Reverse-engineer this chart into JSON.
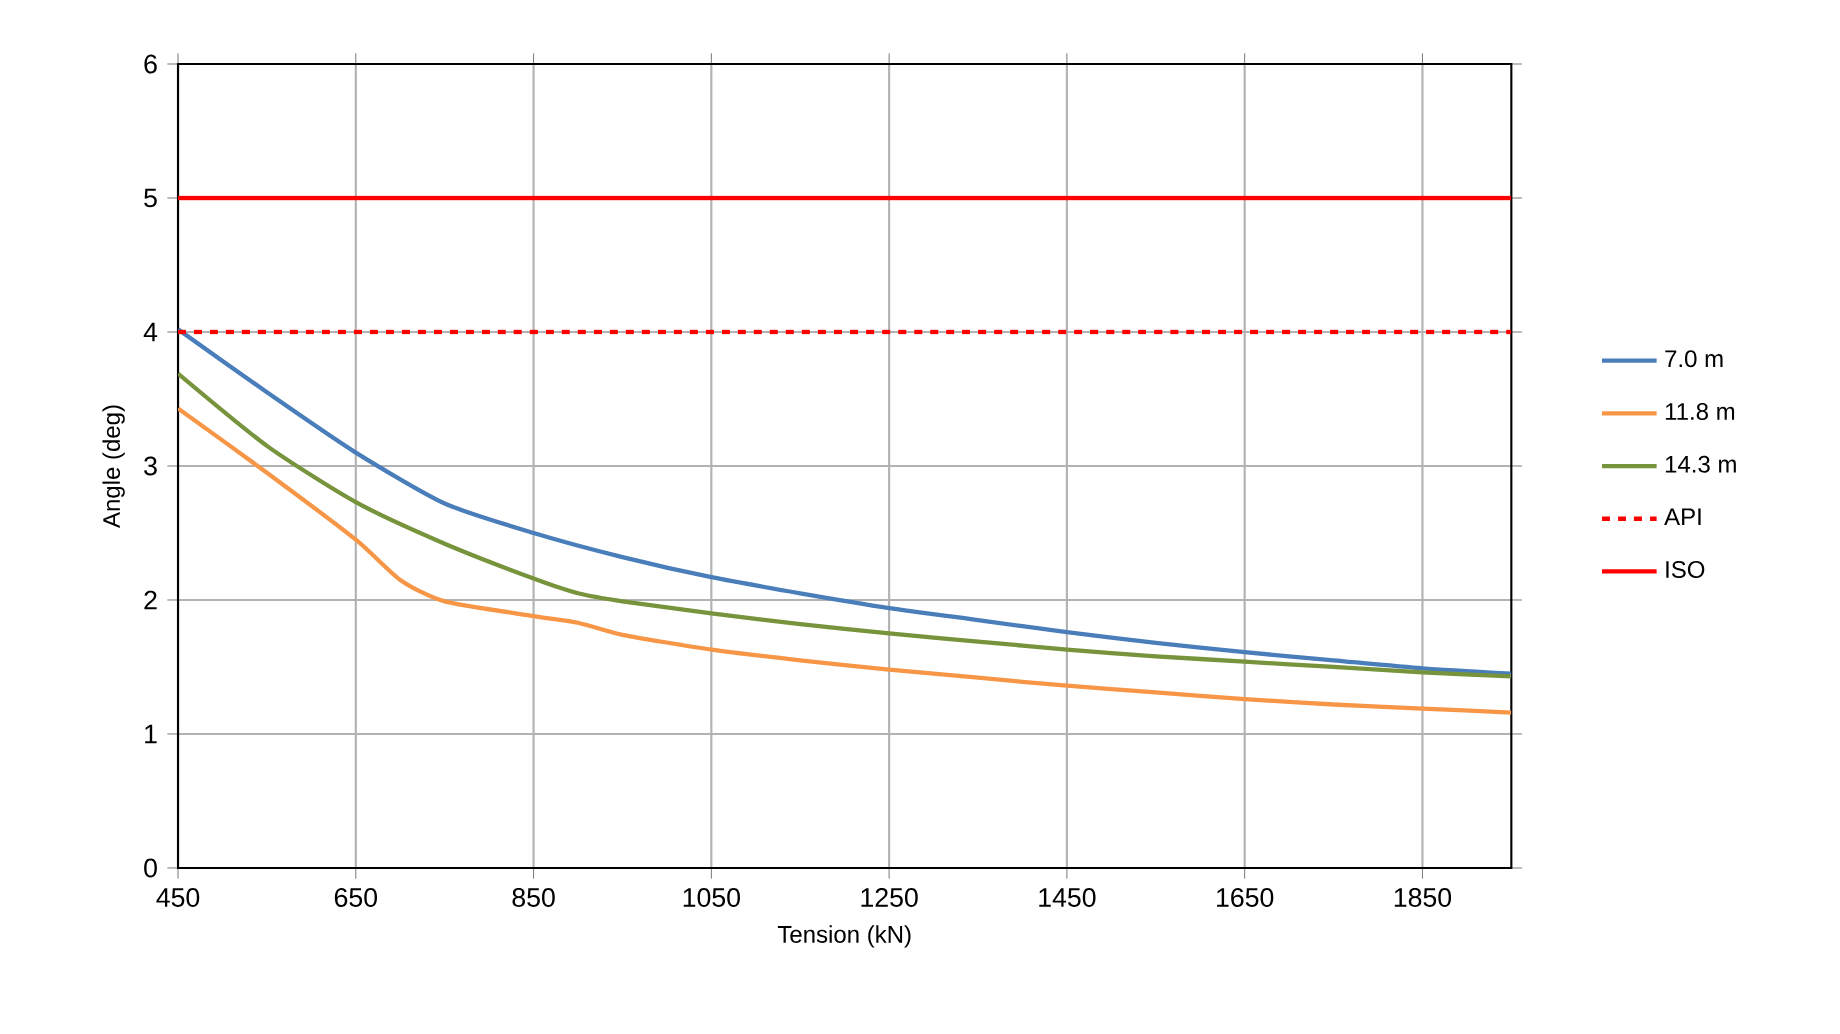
{
  "chart_data": {
    "type": "line",
    "xlabel": "Tension (kN)",
    "ylabel": "Angle (deg)",
    "xlim": [
      450,
      1950
    ],
    "ylim": [
      0,
      6
    ],
    "xticks": [
      450,
      650,
      850,
      1050,
      1250,
      1450,
      1650,
      1850
    ],
    "yticks": [
      0,
      1,
      2,
      3,
      4,
      5,
      6
    ],
    "grid": true,
    "legend": "right",
    "marker": "none",
    "line_style": "solid",
    "series": [
      {
        "name": "7.0 m",
        "color": "#4a7ebb",
        "x": [
          450,
          550,
          650,
          750,
          850,
          950,
          1050,
          1150,
          1250,
          1350,
          1450,
          1550,
          1650,
          1750,
          1850,
          1950
        ],
        "values": [
          4.02,
          3.55,
          3.1,
          2.72,
          2.5,
          2.32,
          2.17,
          2.05,
          1.94,
          1.85,
          1.76,
          1.68,
          1.61,
          1.55,
          1.49,
          1.45
        ]
      },
      {
        "name": "11.8 m",
        "color": "#f79646",
        "x": [
          450,
          550,
          650,
          700,
          750,
          850,
          900,
          950,
          1050,
          1150,
          1250,
          1350,
          1450,
          1550,
          1650,
          1750,
          1850,
          1950
        ],
        "values": [
          3.43,
          2.95,
          2.45,
          2.15,
          1.99,
          1.88,
          1.83,
          1.74,
          1.63,
          1.55,
          1.48,
          1.42,
          1.36,
          1.31,
          1.26,
          1.22,
          1.19,
          1.16
        ]
      },
      {
        "name": "14.3 m",
        "color": "#77933c",
        "x": [
          450,
          550,
          650,
          750,
          850,
          900,
          950,
          1050,
          1150,
          1250,
          1350,
          1450,
          1550,
          1650,
          1750,
          1850,
          1950
        ],
        "values": [
          3.69,
          3.15,
          2.73,
          2.42,
          2.16,
          2.05,
          1.99,
          1.9,
          1.82,
          1.75,
          1.69,
          1.63,
          1.58,
          1.54,
          1.5,
          1.46,
          1.43
        ]
      },
      {
        "name": "API",
        "color": "#ff0000",
        "line_style": "dashed",
        "x": [
          450,
          1950
        ],
        "values": [
          4,
          4
        ]
      },
      {
        "name": "ISO",
        "color": "#ff0000",
        "x": [
          450,
          1950
        ],
        "values": [
          5,
          5
        ]
      }
    ]
  }
}
